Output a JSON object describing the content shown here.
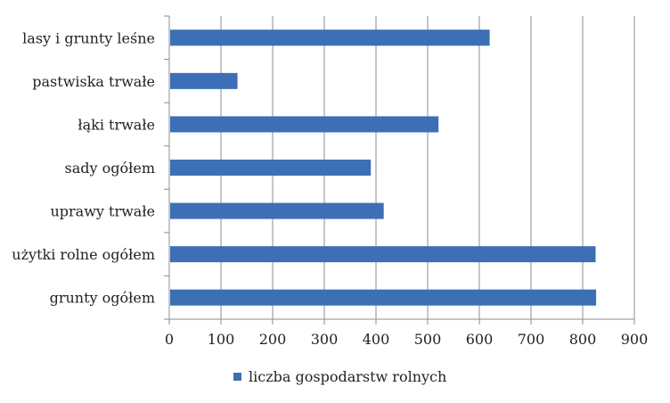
{
  "chart_data": {
    "type": "bar",
    "orientation": "horizontal",
    "categories": [
      "lasy i grunty leśne",
      "pastwiska trwałe",
      "łąki trwałe",
      "sady ogółem",
      "uprawy trwałe",
      "użytki rolne ogółem",
      "grunty ogółem"
    ],
    "series": [
      {
        "name": "liczba gospodarstw rolnych",
        "values": [
          620,
          132,
          521,
          390,
          415,
          825,
          826
        ],
        "color": "#3d6fb6"
      }
    ],
    "xlim": [
      0,
      900
    ],
    "xticks": [
      "0",
      "100",
      "200",
      "300",
      "400",
      "500",
      "600",
      "700",
      "800",
      "900"
    ],
    "grid": true,
    "legend_position": "bottom"
  }
}
